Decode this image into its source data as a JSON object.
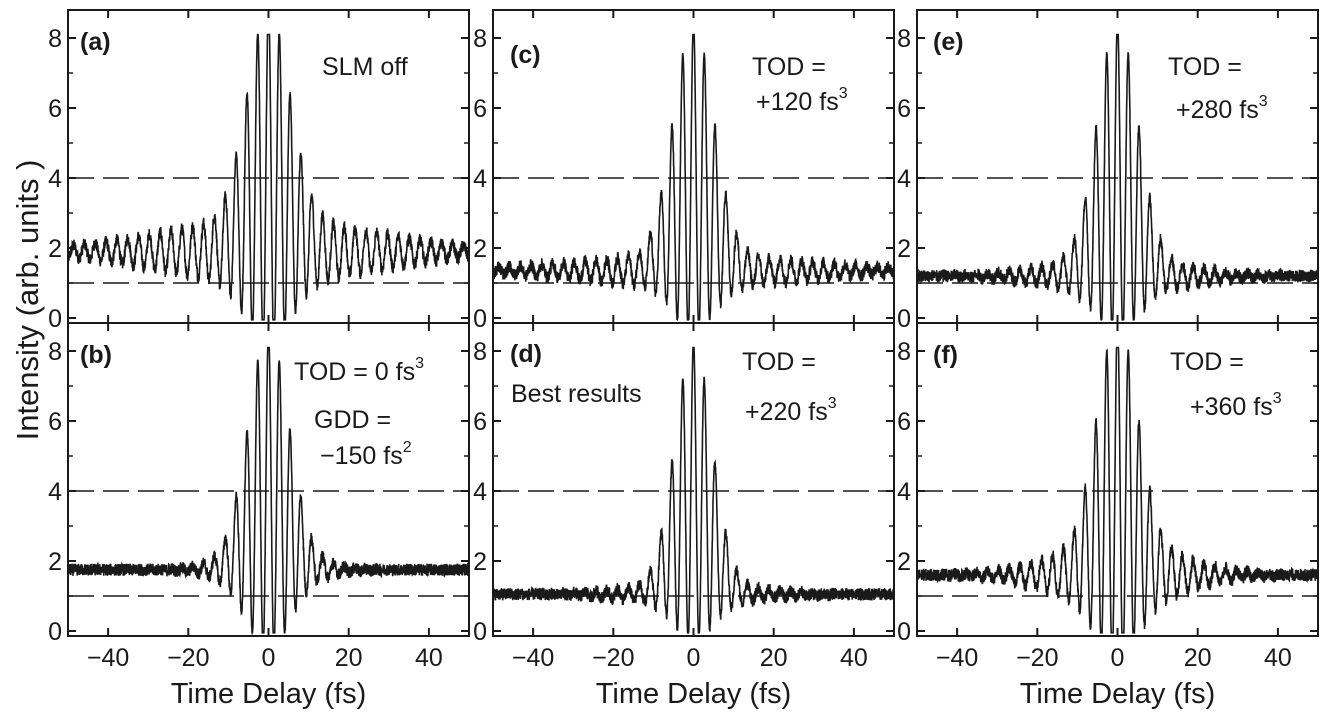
{
  "figure": {
    "ylabel": "Intensity (arb. units )",
    "xlabel": "Time Delay (fs)"
  },
  "chart_data": [
    {
      "type": "line",
      "panel": "(a)",
      "annotations": [
        {
          "text": "SLM off"
        }
      ],
      "xlim": [
        -50,
        50
      ],
      "ylim": [
        -0.3,
        8.4
      ],
      "xticks": [
        -40,
        -20,
        0,
        20,
        40
      ],
      "yticks": [
        0,
        2,
        4,
        6,
        8
      ],
      "reference_lines_y": [
        1,
        4
      ],
      "trace": {
        "period_fs": 2.7,
        "peak": 8,
        "center_width_fs": 7.5,
        "baseline": 1.9,
        "wing_amplitude": 0.9,
        "wing_width_fs": 38
      }
    },
    {
      "type": "line",
      "panel": "(b)",
      "annotations": [
        {
          "text": "TOD = 0 fs",
          "sup": "3"
        },
        {
          "text": "GDD =",
          "sup": ""
        },
        {
          "text": "−150 fs",
          "sup": "2"
        }
      ],
      "xlim": [
        -50,
        50
      ],
      "ylim": [
        -0.3,
        8.4
      ],
      "xticks": [
        -40,
        -20,
        0,
        20,
        40
      ],
      "yticks": [
        0,
        2,
        4,
        6,
        8
      ],
      "reference_lines_y": [
        1,
        4
      ],
      "trace": {
        "period_fs": 2.7,
        "peak": 8,
        "center_width_fs": 7,
        "baseline": 1.75,
        "wing_amplitude": 0.6,
        "wing_width_fs": 14
      }
    },
    {
      "type": "line",
      "panel": "(c)",
      "annotations": [
        {
          "text": "TOD =",
          "sup": ""
        },
        {
          "text": "+120 fs",
          "sup": "3"
        }
      ],
      "xlim": [
        -50,
        50
      ],
      "ylim": [
        -0.3,
        8.4
      ],
      "xticks": [
        -40,
        -20,
        0,
        20,
        40
      ],
      "yticks": [
        0,
        2,
        4,
        6,
        8
      ],
      "reference_lines_y": [
        1,
        4
      ],
      "trace": {
        "period_fs": 2.7,
        "peak": 8,
        "center_width_fs": 7,
        "baseline": 1.35,
        "wing_amplitude": 0.45,
        "wing_width_fs": 40
      }
    },
    {
      "type": "line",
      "panel": "(d)",
      "annotations": [
        {
          "text": "Best results",
          "sup": ""
        },
        {
          "text": "TOD =",
          "sup": ""
        },
        {
          "text": "+220 fs",
          "sup": "3"
        }
      ],
      "xlim": [
        -50,
        50
      ],
      "ylim": [
        -0.3,
        8.4
      ],
      "xticks": [
        -40,
        -20,
        0,
        20,
        40
      ],
      "yticks": [
        0,
        2,
        4,
        6,
        8
      ],
      "reference_lines_y": [
        1,
        4
      ],
      "trace": {
        "period_fs": 2.7,
        "peak": 8,
        "center_width_fs": 6.5,
        "baseline": 1.05,
        "wing_amplitude": 0.3,
        "wing_width_fs": 22
      }
    },
    {
      "type": "line",
      "panel": "(e)",
      "annotations": [
        {
          "text": "TOD =",
          "sup": ""
        },
        {
          "text": "+280 fs",
          "sup": "3"
        }
      ],
      "xlim": [
        -50,
        50
      ],
      "ylim": [
        -0.3,
        8.4
      ],
      "xticks": [
        -40,
        -20,
        0,
        20,
        40
      ],
      "yticks": [
        0,
        2,
        4,
        6,
        8
      ],
      "reference_lines_y": [
        1,
        4
      ],
      "trace": {
        "period_fs": 2.7,
        "peak": 8,
        "center_width_fs": 7,
        "baseline": 1.2,
        "wing_amplitude": 0.5,
        "wing_width_fs": 24
      }
    },
    {
      "type": "line",
      "panel": "(f)",
      "annotations": [
        {
          "text": "TOD =",
          "sup": ""
        },
        {
          "text": "+360 fs",
          "sup": "3"
        }
      ],
      "xlim": [
        -50,
        50
      ],
      "ylim": [
        -0.3,
        8.4
      ],
      "xticks": [
        -40,
        -20,
        0,
        20,
        40
      ],
      "yticks": [
        0,
        2,
        4,
        6,
        8
      ],
      "reference_lines_y": [
        1,
        4
      ],
      "trace": {
        "period_fs": 2.7,
        "peak": 8,
        "center_width_fs": 7,
        "baseline": 1.6,
        "wing_amplitude": 0.9,
        "wing_width_fs": 22
      }
    }
  ]
}
